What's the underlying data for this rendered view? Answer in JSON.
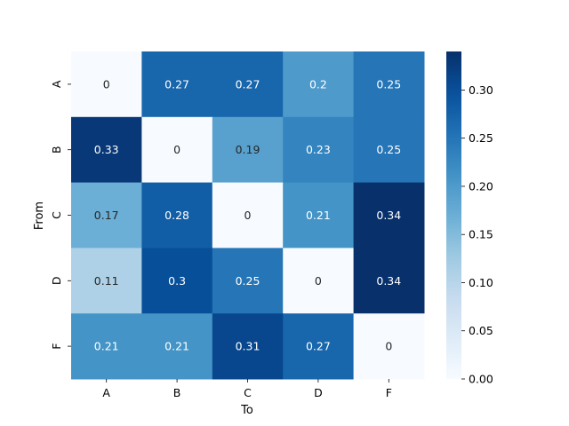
{
  "chart_data": {
    "type": "heatmap",
    "title": "",
    "xlabel": "To",
    "ylabel": "From",
    "x_categories": [
      "A",
      "B",
      "C",
      "D",
      "F"
    ],
    "y_categories": [
      "A",
      "B",
      "C",
      "D",
      "F"
    ],
    "values": [
      [
        0,
        0.27,
        0.27,
        0.2,
        0.25
      ],
      [
        0.33,
        0,
        0.19,
        0.23,
        0.25
      ],
      [
        0.17,
        0.28,
        0,
        0.21,
        0.34
      ],
      [
        0.11,
        0.3,
        0.25,
        0,
        0.34
      ],
      [
        0.21,
        0.21,
        0.31,
        0.27,
        0
      ]
    ],
    "colorscale": "Blues",
    "vmin": 0.0,
    "vmax": 0.34,
    "colorbar_ticks": [
      0.0,
      0.05,
      0.1,
      0.15,
      0.2,
      0.25,
      0.3
    ],
    "colorbar_tick_labels": [
      "0.00",
      "0.05",
      "0.10",
      "0.15",
      "0.20",
      "0.25",
      "0.30"
    ],
    "grid": false,
    "legend": "colorbar-right"
  }
}
